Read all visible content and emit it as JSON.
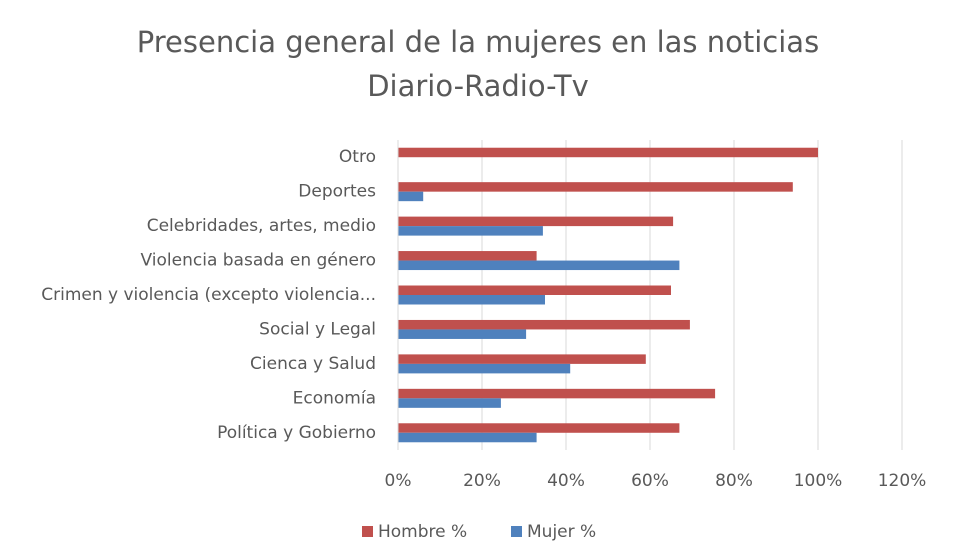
{
  "chart_data": {
    "type": "hbar",
    "title": [
      "Presencia general de la mujeres en las noticias",
      "Diario-Radio-Tv"
    ],
    "categories": [
      "Otro",
      "Deportes",
      "Celebridades, artes, medio",
      "Violencia basada en género",
      "Crimen y violencia (excepto violencia...",
      "Social y Legal",
      "Cienca y Salud",
      "Economía",
      "Política y Gobierno"
    ],
    "series": [
      {
        "name": "Hombre %",
        "color": "#c0504d",
        "values": [
          100,
          94,
          65.5,
          33,
          65,
          69.5,
          59,
          75.5,
          67
        ]
      },
      {
        "name": "Mujer %",
        "color": "#4f81bd",
        "values": [
          0,
          6,
          34.5,
          67,
          35,
          30.5,
          41,
          24.5,
          33
        ]
      }
    ],
    "xlim": [
      0,
      120
    ],
    "xticks": [
      {
        "value": 0,
        "label": "0%"
      },
      {
        "value": 20,
        "label": "20%"
      },
      {
        "value": 40,
        "label": "40%"
      },
      {
        "value": 60,
        "label": "60%"
      },
      {
        "value": 80,
        "label": "80%"
      },
      {
        "value": 100,
        "label": "100%"
      },
      {
        "value": 120,
        "label": "120%"
      }
    ],
    "grid": true,
    "legend": "bottom"
  }
}
